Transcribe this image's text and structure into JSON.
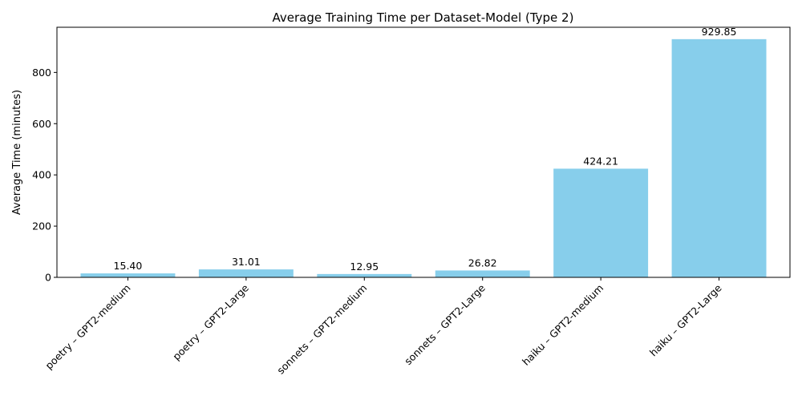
{
  "chart_data": {
    "type": "bar",
    "title": "Average Training Time per Dataset-Model (Type 2)",
    "xlabel": "",
    "ylabel": "Average Time (minutes)",
    "categories": [
      "poetry – GPT2-medium",
      "poetry – GPT2-Large",
      "sonnets – GPT2-medium",
      "sonnets – GPT2-Large",
      "haiku – GPT2-medium",
      "haiku – GPT2-Large"
    ],
    "values": [
      15.4,
      31.01,
      12.95,
      26.82,
      424.21,
      929.85
    ],
    "value_labels": [
      "15.40",
      "31.01",
      "12.95",
      "26.82",
      "424.21",
      "929.85"
    ],
    "ylim": [
      0,
      976.34
    ],
    "yticks": [
      0,
      200,
      400,
      600,
      800
    ],
    "bar_color": "#87ceeb",
    "grid": false,
    "legend": "none"
  }
}
